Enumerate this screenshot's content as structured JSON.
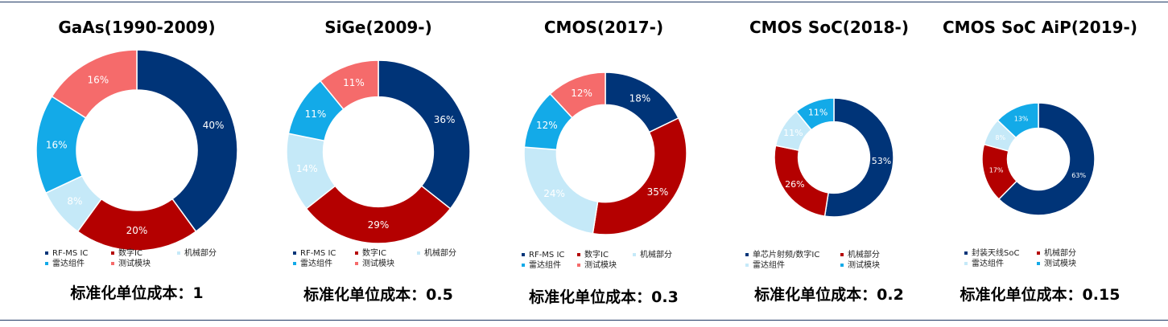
{
  "colors": {
    "rf_ms_ic": "#003478",
    "digital_ic": "#b40000",
    "mechanical": "#c5e9f8",
    "radar": "#13aae8",
    "test": "#f56b6b"
  },
  "charts": [
    {
      "title": "GaAs(1990-2009)",
      "cost_label": "标准化单位成本：1",
      "legend": [
        {
          "label": "RF-MS IC",
          "color": "#003478"
        },
        {
          "label": "数字IC",
          "color": "#b40000"
        },
        {
          "label": "机械部分",
          "color": "#c5e9f8"
        },
        {
          "label": "雷达组件",
          "color": "#13aae8"
        },
        {
          "label": "测试模块",
          "color": "#f56b6b"
        }
      ],
      "slices": [
        {
          "label": "40%",
          "value": 40,
          "color": "#003478"
        },
        {
          "label": "20%",
          "value": 20,
          "color": "#b40000"
        },
        {
          "label": "8%",
          "value": 8,
          "color": "#c5e9f8"
        },
        {
          "label": "16%",
          "value": 16,
          "color": "#13aae8"
        },
        {
          "label": "16%",
          "value": 16,
          "color": "#f56b6b"
        }
      ]
    },
    {
      "title": "SiGe(2009-)",
      "cost_label": "标准化单位成本：0.5",
      "legend": [
        {
          "label": "RF-MS IC",
          "color": "#003478"
        },
        {
          "label": "数字IC",
          "color": "#b40000"
        },
        {
          "label": "机械部分",
          "color": "#c5e9f8"
        },
        {
          "label": "雷达组件",
          "color": "#13aae8"
        },
        {
          "label": "测试模块",
          "color": "#f56b6b"
        }
      ],
      "slices": [
        {
          "label": "36%",
          "value": 36,
          "color": "#003478"
        },
        {
          "label": "29%",
          "value": 29,
          "color": "#b40000"
        },
        {
          "label": "14%",
          "value": 14,
          "color": "#c5e9f8"
        },
        {
          "label": "11%",
          "value": 11,
          "color": "#13aae8"
        },
        {
          "label": "11%",
          "value": 11,
          "color": "#f56b6b"
        }
      ]
    },
    {
      "title": "CMOS(2017-)",
      "cost_label": "标准化单位成本：0.3",
      "legend": [
        {
          "label": "RF-MS IC",
          "color": "#003478"
        },
        {
          "label": "数字IC",
          "color": "#b40000"
        },
        {
          "label": "机械部分",
          "color": "#c5e9f8"
        },
        {
          "label": "雷达组件",
          "color": "#13aae8"
        },
        {
          "label": "测试模块",
          "color": "#f56b6b"
        }
      ],
      "slices": [
        {
          "label": "18%",
          "value": 18,
          "color": "#003478"
        },
        {
          "label": "35%",
          "value": 35,
          "color": "#b40000"
        },
        {
          "label": "24%",
          "value": 24,
          "color": "#c5e9f8"
        },
        {
          "label": "12%",
          "value": 12,
          "color": "#13aae8"
        },
        {
          "label": "12%",
          "value": 12,
          "color": "#f56b6b"
        }
      ]
    },
    {
      "title": "CMOS SoC(2018-)",
      "cost_label": "标准化单位成本：0.2",
      "legend": [
        {
          "label": "单芯片射频/数字IC",
          "color": "#003478"
        },
        {
          "label": "机械部分",
          "color": "#b40000"
        },
        {
          "label": "雷达组件",
          "color": "#c5e9f8"
        },
        {
          "label": "测试模块",
          "color": "#13aae8"
        }
      ],
      "slices": [
        {
          "label": "53%",
          "value": 53,
          "color": "#003478"
        },
        {
          "label": "26%",
          "value": 26,
          "color": "#b40000"
        },
        {
          "label": "11%",
          "value": 11,
          "color": "#c5e9f8"
        },
        {
          "label": "11%",
          "value": 11,
          "color": "#13aae8"
        }
      ]
    },
    {
      "title": "CMOS SoC AiP(2019-)",
      "cost_label": "标准化单位成本：0.15",
      "legend": [
        {
          "label": "封装天线SoC",
          "color": "#003478"
        },
        {
          "label": "机械部分",
          "color": "#b40000"
        },
        {
          "label": "雷达组件",
          "color": "#c5e9f8"
        },
        {
          "label": "测试模块",
          "color": "#13aae8"
        }
      ],
      "slices": [
        {
          "label": "63%",
          "value": 63,
          "color": "#003478"
        },
        {
          "label": "17%",
          "value": 17,
          "color": "#b40000"
        },
        {
          "label": "8%",
          "value": 8,
          "color": "#c5e9f8"
        },
        {
          "label": "13%",
          "value": 13,
          "color": "#13aae8"
        }
      ]
    }
  ],
  "chart_data": [
    {
      "type": "pie",
      "title": "GaAs(1990-2009)",
      "categories": [
        "RF-MS IC",
        "数字IC",
        "机械部分",
        "雷达组件",
        "测试模块"
      ],
      "values": [
        40,
        20,
        8,
        16,
        16
      ]
    },
    {
      "type": "pie",
      "title": "SiGe(2009-)",
      "categories": [
        "RF-MS IC",
        "数字IC",
        "机械部分",
        "雷达组件",
        "测试模块"
      ],
      "values": [
        36,
        29,
        14,
        11,
        11
      ]
    },
    {
      "type": "pie",
      "title": "CMOS(2017-)",
      "categories": [
        "RF-MS IC",
        "数字IC",
        "机械部分",
        "雷达组件",
        "测试模块"
      ],
      "values": [
        18,
        35,
        24,
        12,
        12
      ]
    },
    {
      "type": "pie",
      "title": "CMOS SoC(2018-)",
      "categories": [
        "单芯片射频/数字IC",
        "机械部分",
        "雷达组件",
        "测试模块"
      ],
      "values": [
        53,
        26,
        11,
        11
      ]
    },
    {
      "type": "pie",
      "title": "CMOS SoC AiP(2019-)",
      "categories": [
        "封装天线SoC",
        "机械部分",
        "雷达组件",
        "测试模块"
      ],
      "values": [
        63,
        17,
        8,
        13
      ]
    }
  ]
}
